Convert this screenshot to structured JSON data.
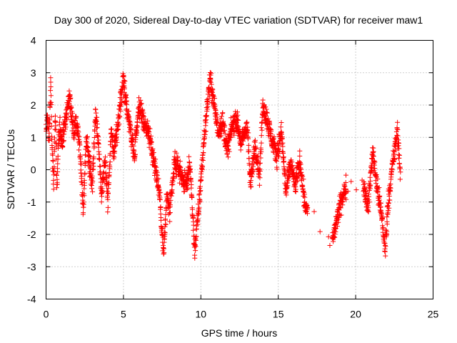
{
  "chart_data": {
    "type": "scatter",
    "title": "Day 300 of 2020, Sidereal Day-to-day VTEC variation (SDTVAR) for receiver maw1",
    "xlabel": "GPS time / hours",
    "ylabel": "SDTVAR / TECUs",
    "xlim": [
      0,
      25
    ],
    "ylim": [
      -4,
      4
    ],
    "xticks": [
      "0",
      "5",
      "10",
      "15",
      "20",
      "25"
    ],
    "yticks": [
      "4",
      "3",
      "2",
      "1",
      "0",
      "-1",
      "-2",
      "-3",
      "-4"
    ],
    "grid": true,
    "marker": "plus",
    "marker_color": "#ff0000",
    "series": [
      {
        "name": "SDTVAR",
        "control_points": [
          [
            0.0,
            1.2
          ],
          [
            0.1,
            1.6
          ],
          [
            0.2,
            1.0
          ],
          [
            0.3,
            2.8
          ],
          [
            0.4,
            0.5
          ],
          [
            0.5,
            -0.3
          ],
          [
            0.6,
            1.8
          ],
          [
            0.7,
            -0.6
          ],
          [
            0.8,
            0.9
          ],
          [
            0.9,
            1.3
          ],
          [
            1.0,
            0.8
          ],
          [
            1.2,
            1.3
          ],
          [
            1.5,
            2.3
          ],
          [
            1.8,
            1.1
          ],
          [
            2.0,
            1.5
          ],
          [
            2.2,
            0.6
          ],
          [
            2.4,
            -1.3
          ],
          [
            2.6,
            1.0
          ],
          [
            2.8,
            0.2
          ],
          [
            3.0,
            -0.4
          ],
          [
            3.2,
            1.8
          ],
          [
            3.4,
            0.7
          ],
          [
            3.6,
            -0.8
          ],
          [
            3.8,
            0.4
          ],
          [
            4.0,
            -1.0
          ],
          [
            4.2,
            1.2
          ],
          [
            4.4,
            0.5
          ],
          [
            5.0,
            2.8
          ],
          [
            5.2,
            2.0
          ],
          [
            5.4,
            1.4
          ],
          [
            5.7,
            0.5
          ],
          [
            6.0,
            2.0
          ],
          [
            6.3,
            1.5
          ],
          [
            6.6,
            1.2
          ],
          [
            7.0,
            0.2
          ],
          [
            7.3,
            -0.6
          ],
          [
            7.6,
            -2.6
          ],
          [
            7.8,
            -0.8
          ],
          [
            8.0,
            -1.3
          ],
          [
            8.3,
            0.2
          ],
          [
            8.6,
            0.0
          ],
          [
            9.0,
            -0.5
          ],
          [
            9.3,
            0.1
          ],
          [
            9.6,
            -2.5
          ],
          [
            9.9,
            -1.0
          ],
          [
            10.1,
            0.3
          ],
          [
            10.4,
            2.0
          ],
          [
            10.6,
            2.8
          ],
          [
            10.8,
            2.2
          ],
          [
            11.1,
            1.2
          ],
          [
            11.4,
            1.5
          ],
          [
            11.7,
            0.6
          ],
          [
            12.0,
            1.3
          ],
          [
            12.3,
            1.6
          ],
          [
            12.6,
            0.8
          ],
          [
            13.0,
            1.4
          ],
          [
            13.2,
            -0.5
          ],
          [
            13.5,
            0.8
          ],
          [
            13.8,
            -0.2
          ],
          [
            14.0,
            2.0
          ],
          [
            14.3,
            1.5
          ],
          [
            14.6,
            0.9
          ],
          [
            14.9,
            0.4
          ],
          [
            15.2,
            1.2
          ],
          [
            15.5,
            -0.7
          ],
          [
            15.8,
            0.2
          ],
          [
            16.1,
            -0.5
          ],
          [
            16.4,
            0.3
          ],
          [
            16.7,
            -1.0
          ],
          [
            16.9,
            -1.3
          ],
          [
            18.5,
            -2.2
          ],
          [
            19.0,
            -1.1
          ],
          [
            19.4,
            -0.5
          ],
          [
            20.5,
            -0.4
          ],
          [
            20.8,
            -1.2
          ],
          [
            21.1,
            0.6
          ],
          [
            21.4,
            -0.6
          ],
          [
            21.7,
            -1.5
          ],
          [
            21.9,
            -2.5
          ],
          [
            22.1,
            -1.0
          ],
          [
            22.4,
            0.2
          ],
          [
            22.7,
            1.2
          ],
          [
            22.9,
            -0.3
          ]
        ]
      }
    ]
  }
}
